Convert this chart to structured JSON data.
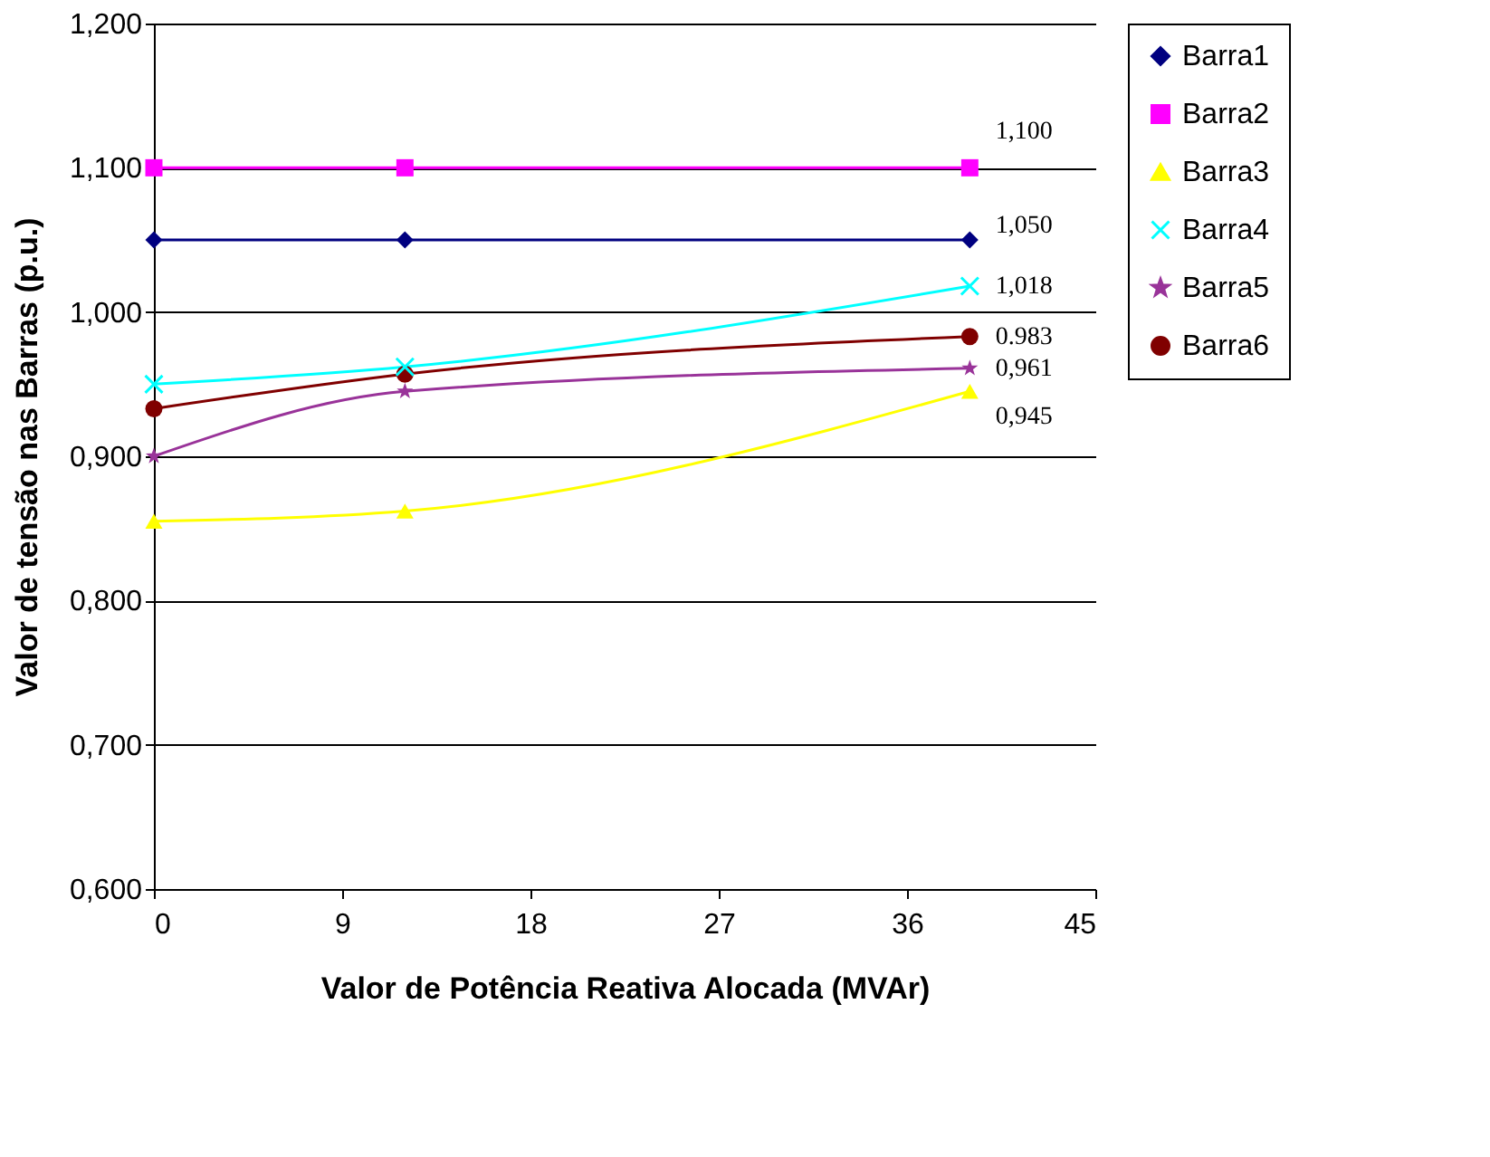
{
  "chart_data": {
    "type": "line",
    "xlabel": "Valor de Potência Reativa Alocada (MVAr)",
    "ylabel": "Valor de tensão nas Barras (p.u.)",
    "x": [
      0,
      12,
      39
    ],
    "series": [
      {
        "name": "Barra1",
        "color": "#000080",
        "marker": "diamond",
        "values": [
          1.05,
          1.05,
          1.05
        ],
        "value_labels": [
          null,
          null,
          "1,050"
        ]
      },
      {
        "name": "Barra2",
        "color": "#ff00ff",
        "marker": "square",
        "values": [
          1.1,
          1.1,
          1.1
        ],
        "value_labels": [
          null,
          null,
          "1,100"
        ]
      },
      {
        "name": "Barra3",
        "color": "#ffff00",
        "marker": "triangle",
        "values": [
          0.855,
          0.862,
          0.945
        ],
        "value_labels": [
          null,
          null,
          "0,945"
        ]
      },
      {
        "name": "Barra4",
        "color": "#00ffff",
        "marker": "cross",
        "values": [
          0.95,
          0.962,
          1.018
        ],
        "value_labels": [
          null,
          null,
          "1,018"
        ]
      },
      {
        "name": "Barra5",
        "color": "#993399",
        "marker": "star",
        "values": [
          0.9,
          0.945,
          0.961
        ],
        "value_labels": [
          null,
          null,
          "0,961"
        ]
      },
      {
        "name": "Barra6",
        "color": "#800000",
        "marker": "circle",
        "values": [
          0.933,
          0.957,
          0.983
        ],
        "value_labels": [
          null,
          null,
          "0.983"
        ]
      }
    ],
    "xlim": [
      0,
      45
    ],
    "xticks": [
      0,
      9,
      18,
      27,
      36,
      45
    ],
    "ylim": [
      0.6,
      1.2
    ],
    "yticks": [
      {
        "value": 0.6,
        "label": "0,600"
      },
      {
        "value": 0.7,
        "label": "0,700"
      },
      {
        "value": 0.8,
        "label": "0,800"
      },
      {
        "value": 0.9,
        "label": "0,900"
      },
      {
        "value": 1.0,
        "label": "1,000"
      },
      {
        "value": 1.1,
        "label": "1,100"
      },
      {
        "value": 1.2,
        "label": "1,200"
      }
    ],
    "grid": "y",
    "legend": "right",
    "line_style": "solid"
  }
}
